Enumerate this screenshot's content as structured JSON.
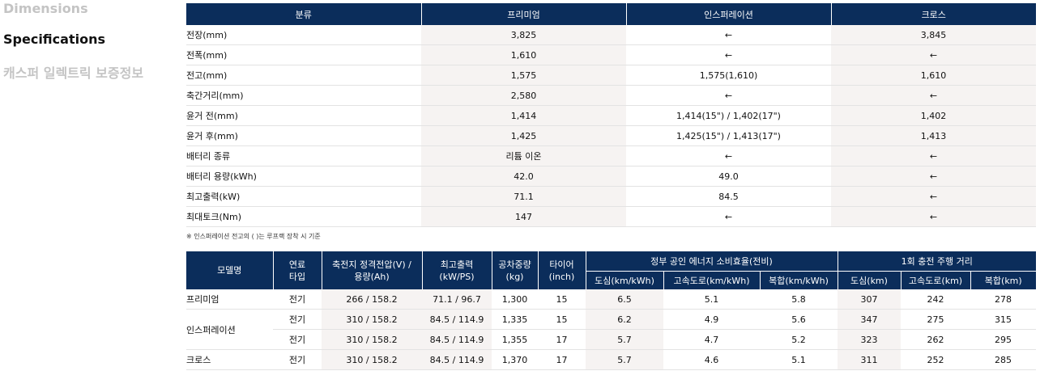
{
  "nav": {
    "items": [
      {
        "label": "Dimensions",
        "active": false
      },
      {
        "label": "Specifications",
        "active": true
      },
      {
        "label": "캐스퍼 일렉트릭 보증정보",
        "active": false
      }
    ]
  },
  "spec_table": {
    "headers": [
      "분류",
      "프리미엄",
      "인스퍼레이션",
      "크로스"
    ],
    "rows": [
      {
        "label": "전장(mm)",
        "premium": "3,825",
        "inspiration": "←",
        "cross": "3,845"
      },
      {
        "label": "전폭(mm)",
        "premium": "1,610",
        "inspiration": "←",
        "cross": "←"
      },
      {
        "label": "전고(mm)",
        "premium": "1,575",
        "inspiration": "1,575(1,610)",
        "cross": "1,610"
      },
      {
        "label": "축간거리(mm)",
        "premium": "2,580",
        "inspiration": "←",
        "cross": "←"
      },
      {
        "label": "윤거 전(mm)",
        "premium": "1,414",
        "inspiration": "1,414(15\") / 1,402(17\")",
        "cross": "1,402"
      },
      {
        "label": "윤거 후(mm)",
        "premium": "1,425",
        "inspiration": "1,425(15\") / 1,413(17\")",
        "cross": "1,413"
      },
      {
        "label": "배터리 종류",
        "premium": "리튬 이온",
        "inspiration": "←",
        "cross": "←"
      },
      {
        "label": "배터리 용량(kWh)",
        "premium": "42.0",
        "inspiration": "49.0",
        "cross": "←"
      },
      {
        "label": "최고출력(kW)",
        "premium": "71.1",
        "inspiration": "84.5",
        "cross": "←"
      },
      {
        "label": "최대토크(Nm)",
        "premium": "147",
        "inspiration": "←",
        "cross": "←"
      }
    ],
    "note": "※ 인스퍼레이션 전고의 ( )는 루프랙 장착 시 기준"
  },
  "model_table": {
    "headers": {
      "model": "모델명",
      "fuel": "연료\n타입",
      "voltage": "축전지 정격전압(V) /\n용량(Ah)",
      "power": "최고출력\n(kW/PS)",
      "weight": "공차중량\n(kg)",
      "tire": "타이어\n(inch)",
      "efficiency": "정부 공인 에너지 소비효율(전비)",
      "range": "1회 충전 주행 거리",
      "eff_city": "도심(km/kWh)",
      "eff_highway": "고속도로(km/kWh)",
      "eff_combined": "복합(km/kWh)",
      "range_city": "도심(km)",
      "range_highway": "고속도로(km)",
      "range_combined": "복합(km)"
    },
    "rows": [
      {
        "model": "프리미엄",
        "fuel": "전기",
        "voltage": "266 / 158.2",
        "power": "71.1 / 96.7",
        "weight": "1,300",
        "tire": "15",
        "eff_city": "6.5",
        "eff_highway": "5.1",
        "eff_combined": "5.8",
        "range_city": "307",
        "range_highway": "242",
        "range_combined": "278"
      },
      {
        "model": "인스퍼레이션",
        "fuel": "전기",
        "voltage": "310 / 158.2",
        "power": "84.5 / 114.9",
        "weight": "1,335",
        "tire": "15",
        "eff_city": "6.2",
        "eff_highway": "4.9",
        "eff_combined": "5.6",
        "range_city": "347",
        "range_highway": "275",
        "range_combined": "315"
      },
      {
        "model": "",
        "fuel": "전기",
        "voltage": "310 / 158.2",
        "power": "84.5 / 114.9",
        "weight": "1,355",
        "tire": "17",
        "eff_city": "5.7",
        "eff_highway": "4.7",
        "eff_combined": "5.2",
        "range_city": "323",
        "range_highway": "262",
        "range_combined": "295"
      },
      {
        "model": "크로스",
        "fuel": "전기",
        "voltage": "310 / 158.2",
        "power": "84.5 / 114.9",
        "weight": "1,370",
        "tire": "17",
        "eff_city": "5.7",
        "eff_highway": "4.6",
        "eff_combined": "5.1",
        "range_city": "311",
        "range_highway": "252",
        "range_combined": "285"
      }
    ]
  }
}
